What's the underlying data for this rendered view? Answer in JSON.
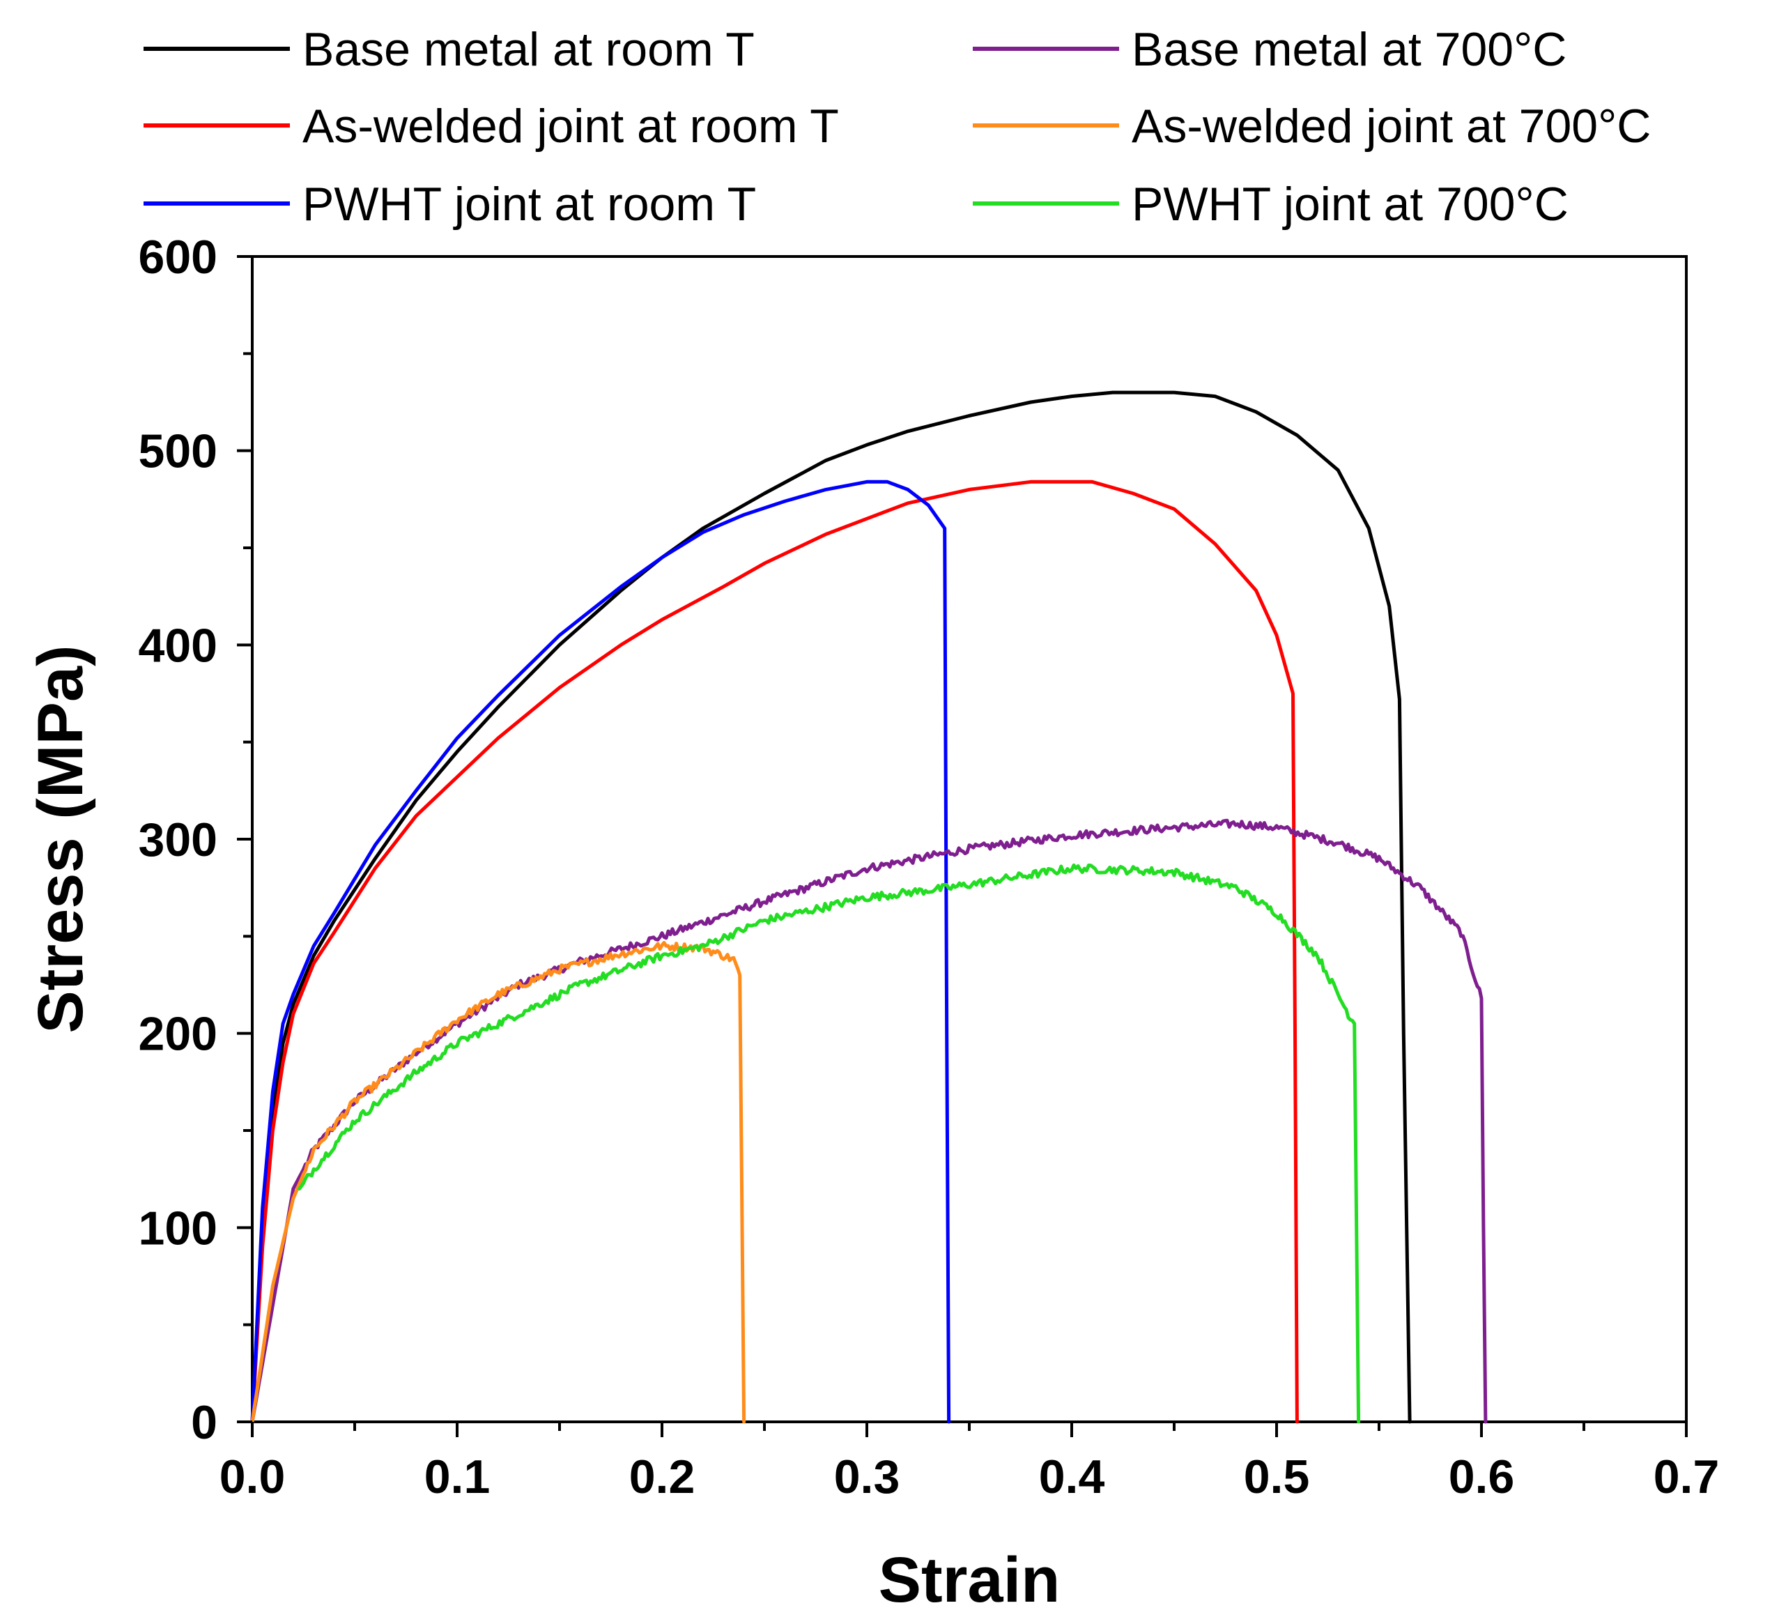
{
  "chart_data": {
    "type": "line",
    "title": "",
    "xlabel": "Strain",
    "ylabel": "Stress (MPa)",
    "xlim": [
      0.0,
      0.7
    ],
    "ylim": [
      0,
      600
    ],
    "x_ticks": [
      "0.0",
      "0.1",
      "0.2",
      "0.3",
      "0.4",
      "0.5",
      "0.6",
      "0.7"
    ],
    "y_ticks": [
      "0",
      "100",
      "200",
      "300",
      "400",
      "500",
      "600"
    ],
    "legend_position": "top",
    "grid": false,
    "series": [
      {
        "name": "Base metal at room T",
        "color": "#000000",
        "noisy": false,
        "points": [
          [
            0,
            0
          ],
          [
            0.005,
            100
          ],
          [
            0.01,
            160
          ],
          [
            0.015,
            195
          ],
          [
            0.02,
            215
          ],
          [
            0.03,
            240
          ],
          [
            0.04,
            258
          ],
          [
            0.06,
            290
          ],
          [
            0.08,
            320
          ],
          [
            0.1,
            345
          ],
          [
            0.12,
            368
          ],
          [
            0.15,
            400
          ],
          [
            0.18,
            428
          ],
          [
            0.2,
            445
          ],
          [
            0.22,
            460
          ],
          [
            0.25,
            478
          ],
          [
            0.28,
            495
          ],
          [
            0.3,
            503
          ],
          [
            0.32,
            510
          ],
          [
            0.35,
            518
          ],
          [
            0.38,
            525
          ],
          [
            0.4,
            528
          ],
          [
            0.42,
            530
          ],
          [
            0.45,
            530
          ],
          [
            0.47,
            528
          ],
          [
            0.49,
            520
          ],
          [
            0.51,
            508
          ],
          [
            0.53,
            490
          ],
          [
            0.545,
            460
          ],
          [
            0.555,
            420
          ],
          [
            0.56,
            372
          ],
          [
            0.562,
            200
          ],
          [
            0.565,
            0
          ]
        ]
      },
      {
        "name": "As-welded joint at room T",
        "color": "#ff0000",
        "noisy": false,
        "points": [
          [
            0,
            0
          ],
          [
            0.005,
            90
          ],
          [
            0.01,
            150
          ],
          [
            0.015,
            185
          ],
          [
            0.02,
            210
          ],
          [
            0.03,
            236
          ],
          [
            0.04,
            252
          ],
          [
            0.06,
            285
          ],
          [
            0.08,
            312
          ],
          [
            0.1,
            332
          ],
          [
            0.12,
            352
          ],
          [
            0.15,
            378
          ],
          [
            0.18,
            400
          ],
          [
            0.2,
            413
          ],
          [
            0.23,
            430
          ],
          [
            0.25,
            442
          ],
          [
            0.28,
            457
          ],
          [
            0.3,
            465
          ],
          [
            0.32,
            473
          ],
          [
            0.35,
            480
          ],
          [
            0.38,
            484
          ],
          [
            0.41,
            484
          ],
          [
            0.43,
            478
          ],
          [
            0.45,
            470
          ],
          [
            0.47,
            452
          ],
          [
            0.49,
            428
          ],
          [
            0.5,
            405
          ],
          [
            0.508,
            375
          ],
          [
            0.509,
            200
          ],
          [
            0.51,
            0
          ]
        ]
      },
      {
        "name": "PWHT joint at room T",
        "color": "#0000ff",
        "noisy": false,
        "points": [
          [
            0,
            0
          ],
          [
            0.005,
            110
          ],
          [
            0.01,
            170
          ],
          [
            0.015,
            205
          ],
          [
            0.02,
            220
          ],
          [
            0.03,
            245
          ],
          [
            0.04,
            262
          ],
          [
            0.06,
            297
          ],
          [
            0.08,
            325
          ],
          [
            0.1,
            352
          ],
          [
            0.12,
            374
          ],
          [
            0.15,
            405
          ],
          [
            0.18,
            430
          ],
          [
            0.2,
            445
          ],
          [
            0.22,
            458
          ],
          [
            0.24,
            467
          ],
          [
            0.26,
            474
          ],
          [
            0.28,
            480
          ],
          [
            0.3,
            484
          ],
          [
            0.31,
            484
          ],
          [
            0.32,
            480
          ],
          [
            0.33,
            472
          ],
          [
            0.338,
            460
          ],
          [
            0.339,
            200
          ],
          [
            0.34,
            0
          ]
        ]
      },
      {
        "name": "Base metal at 700°C",
        "color": "#7f1f8f",
        "noisy": true,
        "points": [
          [
            0,
            0
          ],
          [
            0.01,
            60
          ],
          [
            0.02,
            120
          ],
          [
            0.03,
            140
          ],
          [
            0.05,
            165
          ],
          [
            0.08,
            190
          ],
          [
            0.1,
            205
          ],
          [
            0.13,
            225
          ],
          [
            0.16,
            237
          ],
          [
            0.2,
            250
          ],
          [
            0.25,
            268
          ],
          [
            0.3,
            285
          ],
          [
            0.35,
            295
          ],
          [
            0.4,
            302
          ],
          [
            0.45,
            306
          ],
          [
            0.48,
            308
          ],
          [
            0.5,
            306
          ],
          [
            0.53,
            298
          ],
          [
            0.55,
            290
          ],
          [
            0.57,
            275
          ],
          [
            0.59,
            252
          ],
          [
            0.6,
            218
          ],
          [
            0.601,
            100
          ],
          [
            0.602,
            0
          ]
        ]
      },
      {
        "name": "As-welded joint at 700°C",
        "color": "#ff8c1a",
        "noisy": true,
        "points": [
          [
            0,
            0
          ],
          [
            0.01,
            70
          ],
          [
            0.02,
            115
          ],
          [
            0.03,
            140
          ],
          [
            0.05,
            165
          ],
          [
            0.08,
            190
          ],
          [
            0.1,
            207
          ],
          [
            0.12,
            220
          ],
          [
            0.15,
            233
          ],
          [
            0.18,
            241
          ],
          [
            0.2,
            245
          ],
          [
            0.22,
            244
          ],
          [
            0.235,
            238
          ],
          [
            0.238,
            230
          ],
          [
            0.24,
            0
          ]
        ]
      },
      {
        "name": "PWHT joint at 700°C",
        "color": "#22dd22",
        "noisy": true,
        "points": [
          [
            0.023,
            120
          ],
          [
            0.03,
            130
          ],
          [
            0.05,
            155
          ],
          [
            0.08,
            180
          ],
          [
            0.1,
            195
          ],
          [
            0.13,
            210
          ],
          [
            0.16,
            225
          ],
          [
            0.2,
            240
          ],
          [
            0.22,
            245
          ],
          [
            0.25,
            258
          ],
          [
            0.3,
            270
          ],
          [
            0.34,
            275
          ],
          [
            0.37,
            280
          ],
          [
            0.4,
            285
          ],
          [
            0.43,
            284
          ],
          [
            0.45,
            283
          ],
          [
            0.48,
            275
          ],
          [
            0.5,
            262
          ],
          [
            0.52,
            240
          ],
          [
            0.535,
            210
          ],
          [
            0.538,
            205
          ],
          [
            0.539,
            100
          ],
          [
            0.54,
            0
          ]
        ]
      }
    ]
  }
}
